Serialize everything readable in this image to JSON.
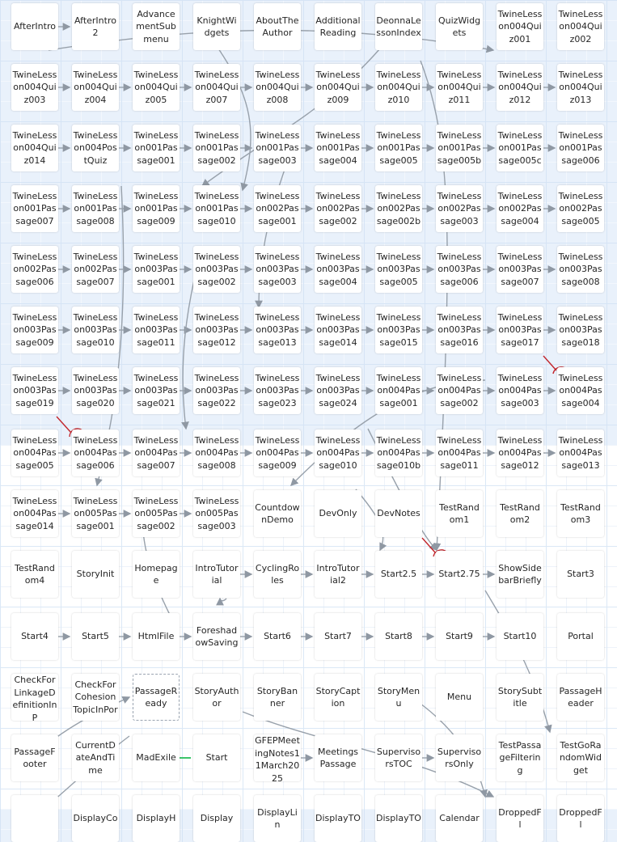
{
  "story_map": {
    "passages": [
      [
        "AfterIntro",
        "AfterIntro2",
        "AdvancementSubmenu",
        "KnightWidgets",
        "AboutTheAuthor",
        "AdditionalReading",
        "DeonnaLessonIndex",
        "QuizWidgets",
        "TwineLesson004Quiz001",
        "TwineLesson004Quiz002"
      ],
      [
        "TwineLesson004Quiz003",
        "TwineLesson004Quiz004",
        "TwineLesson004Quiz005",
        "TwineLesson004Quiz007",
        "TwineLesson004Quiz008",
        "TwineLesson004Quiz009",
        "TwineLesson004Quiz010",
        "TwineLesson004Quiz011",
        "TwineLesson004Quiz012",
        "TwineLesson004Quiz013"
      ],
      [
        "TwineLesson004Quiz014",
        "TwineLesson004PostQuiz",
        "TwineLesson001Passage001",
        "TwineLesson001Passage002",
        "TwineLesson001Passage003",
        "TwineLesson001Passage004",
        "TwineLesson001Passage005",
        "TwineLesson001Passage005b",
        "TwineLesson001Passage005c",
        "TwineLesson001Passage006"
      ],
      [
        "TwineLesson001Passage007",
        "TwineLesson001Passage008",
        "TwineLesson001Passage009",
        "TwineLesson001Passage010",
        "TwineLesson002Passage001",
        "TwineLesson002Passage002",
        "TwineLesson002Passage002b",
        "TwineLesson002Passage003",
        "TwineLesson002Passage004",
        "TwineLesson002Passage005"
      ],
      [
        "TwineLesson002Passage006",
        "TwineLesson002Passage007",
        "TwineLesson003Passage001",
        "TwineLesson003Passage002",
        "TwineLesson003Passage003",
        "TwineLesson003Passage004",
        "TwineLesson003Passage005",
        "TwineLesson003Passage006",
        "TwineLesson003Passage007",
        "TwineLesson003Passage008"
      ],
      [
        "TwineLesson003Passage009",
        "TwineLesson003Passage010",
        "TwineLesson003Passage011",
        "TwineLesson003Passage012",
        "TwineLesson003Passage013",
        "TwineLesson003Passage014",
        "TwineLesson003Passage015",
        "TwineLesson003Passage016",
        "TwineLesson003Passage017",
        "TwineLesson003Passage018"
      ],
      [
        "TwineLesson003Passage019",
        "TwineLesson003Passage020",
        "TwineLesson003Passage021",
        "TwineLesson003Passage022",
        "TwineLesson003Passage023",
        "TwineLesson003Passage024",
        "TwineLesson004Passage001",
        "TwineLesson004Passage002",
        "TwineLesson004Passage003",
        "TwineLesson004Passage004"
      ],
      [
        "TwineLesson004Passage005",
        "TwineLesson004Passage006",
        "TwineLesson004Passage007",
        "TwineLesson004Passage008",
        "TwineLesson004Passage009",
        "TwineLesson004Passage010",
        "TwineLesson004Passage010b",
        "TwineLesson004Passage011",
        "TwineLesson004Passage012",
        "TwineLesson004Passage013"
      ],
      [
        "TwineLesson004Passage014",
        "TwineLesson005Passage001",
        "TwineLesson005Passage002",
        "TwineLesson005Passage003",
        "CountdownDemo",
        "DevOnly",
        "DevNotes",
        "TestRandom1",
        "TestRandom2",
        "TestRandom3"
      ],
      [
        "TestRandom4",
        "StoryInit",
        "Homepage",
        "IntroTutorial",
        "CyclingRoles",
        "IntroTutorial2",
        "Start2.5",
        "Start2.75",
        "ShowSidebarBriefly",
        "Start3"
      ],
      [
        "Start4",
        "Start5",
        "HtmlFile",
        "ForeshadowSaving",
        "Start6",
        "Start7",
        "Start8",
        "Start9",
        "Start10",
        "Portal"
      ],
      [
        "CheckForLinkageDefinitionInP",
        "CheckForCohesionTopicInPor",
        "PassageReady",
        "StoryAuthor",
        "StoryBanner",
        "StoryCaption",
        "StoryMenu",
        "Menu",
        "StorySubtitle",
        "PassageHeader"
      ],
      [
        "PassageFooter",
        "CurrentDateAndTime",
        "MadExile",
        "Start",
        "GFEPMeetingNotes11March2025",
        "MeetingsPassage",
        "SupervisorsTOC",
        "SupervisorsOnly",
        "TestPassageFiltering",
        "TestGoRandomWidget"
      ],
      [
        "",
        "DisplayCo",
        "DisplayH",
        "Display",
        "DisplayLin",
        "DisplayTO",
        "DisplayTO",
        "Calendar",
        "DroppedFl",
        "DroppedFl"
      ]
    ],
    "selected_passage": "PassageReady"
  }
}
